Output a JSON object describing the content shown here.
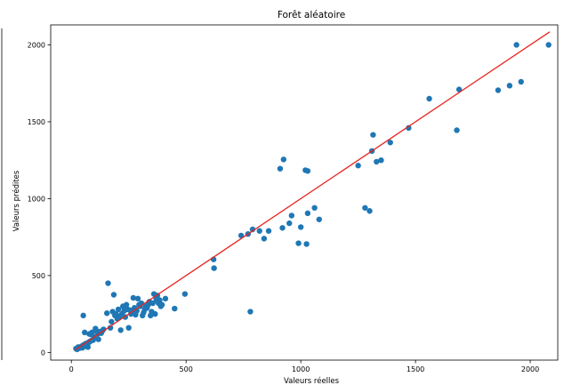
{
  "chart_data": {
    "type": "scatter",
    "title": "Forêt aléatoire",
    "xlabel": "Valeurs réelles",
    "ylabel": "Valeurs prédites",
    "xlim": [
      -90,
      2120
    ],
    "ylim": [
      -50,
      2130
    ],
    "xticks": [
      0,
      500,
      1000,
      1500,
      2000
    ],
    "yticks": [
      0,
      500,
      1000,
      1500,
      2000
    ],
    "grid": false,
    "point_color": "#1f77b4",
    "line_color": "#e8231f",
    "reference_line": {
      "x": [
        15,
        2085
      ],
      "y": [
        15,
        2085
      ]
    },
    "points": [
      [
        20,
        25
      ],
      [
        25,
        20
      ],
      [
        30,
        35
      ],
      [
        35,
        28
      ],
      [
        40,
        30
      ],
      [
        45,
        40
      ],
      [
        48,
        30
      ],
      [
        50,
        45
      ],
      [
        52,
        240
      ],
      [
        55,
        50
      ],
      [
        58,
        130
      ],
      [
        60,
        55
      ],
      [
        65,
        40
      ],
      [
        68,
        60
      ],
      [
        70,
        50
      ],
      [
        72,
        35
      ],
      [
        75,
        65
      ],
      [
        78,
        120
      ],
      [
        80,
        70
      ],
      [
        85,
        75
      ],
      [
        88,
        115
      ],
      [
        90,
        130
      ],
      [
        95,
        80
      ],
      [
        100,
        100
      ],
      [
        105,
        155
      ],
      [
        110,
        140
      ],
      [
        115,
        120
      ],
      [
        118,
        85
      ],
      [
        120,
        130
      ],
      [
        125,
        135
      ],
      [
        130,
        125
      ],
      [
        135,
        140
      ],
      [
        140,
        150
      ],
      [
        155,
        255
      ],
      [
        160,
        450
      ],
      [
        170,
        160
      ],
      [
        175,
        200
      ],
      [
        180,
        265
      ],
      [
        185,
        375
      ],
      [
        190,
        240
      ],
      [
        195,
        250
      ],
      [
        200,
        220
      ],
      [
        205,
        280
      ],
      [
        210,
        230
      ],
      [
        215,
        145
      ],
      [
        220,
        250
      ],
      [
        225,
        300
      ],
      [
        230,
        270
      ],
      [
        235,
        230
      ],
      [
        240,
        310
      ],
      [
        245,
        280
      ],
      [
        250,
        160
      ],
      [
        255,
        275
      ],
      [
        260,
        250
      ],
      [
        265,
        260
      ],
      [
        270,
        355
      ],
      [
        275,
        290
      ],
      [
        280,
        245
      ],
      [
        285,
        270
      ],
      [
        290,
        350
      ],
      [
        295,
        310
      ],
      [
        300,
        300
      ],
      [
        305,
        320
      ],
      [
        310,
        240
      ],
      [
        315,
        260
      ],
      [
        320,
        280
      ],
      [
        325,
        300
      ],
      [
        330,
        290
      ],
      [
        335,
        310
      ],
      [
        340,
        330
      ],
      [
        345,
        240
      ],
      [
        350,
        265
      ],
      [
        355,
        320
      ],
      [
        360,
        380
      ],
      [
        365,
        250
      ],
      [
        370,
        345
      ],
      [
        375,
        370
      ],
      [
        380,
        320
      ],
      [
        385,
        340
      ],
      [
        390,
        300
      ],
      [
        395,
        310
      ],
      [
        410,
        350
      ],
      [
        450,
        285
      ],
      [
        495,
        380
      ],
      [
        620,
        605
      ],
      [
        622,
        548
      ],
      [
        740,
        760
      ],
      [
        770,
        770
      ],
      [
        780,
        265
      ],
      [
        790,
        800
      ],
      [
        820,
        790
      ],
      [
        840,
        740
      ],
      [
        860,
        790
      ],
      [
        910,
        1195
      ],
      [
        920,
        810
      ],
      [
        925,
        1255
      ],
      [
        950,
        840
      ],
      [
        960,
        890
      ],
      [
        990,
        710
      ],
      [
        1000,
        815
      ],
      [
        1020,
        1185
      ],
      [
        1025,
        705
      ],
      [
        1030,
        1180
      ],
      [
        1030,
        905
      ],
      [
        1060,
        940
      ],
      [
        1080,
        865
      ],
      [
        1250,
        1215
      ],
      [
        1280,
        940
      ],
      [
        1300,
        920
      ],
      [
        1310,
        1310
      ],
      [
        1315,
        1415
      ],
      [
        1330,
        1240
      ],
      [
        1350,
        1250
      ],
      [
        1390,
        1365
      ],
      [
        1470,
        1460
      ],
      [
        1560,
        1650
      ],
      [
        1680,
        1445
      ],
      [
        1690,
        1710
      ],
      [
        1860,
        1705
      ],
      [
        1910,
        1735
      ],
      [
        1940,
        2000
      ],
      [
        1960,
        1760
      ],
      [
        2080,
        2000
      ]
    ]
  }
}
